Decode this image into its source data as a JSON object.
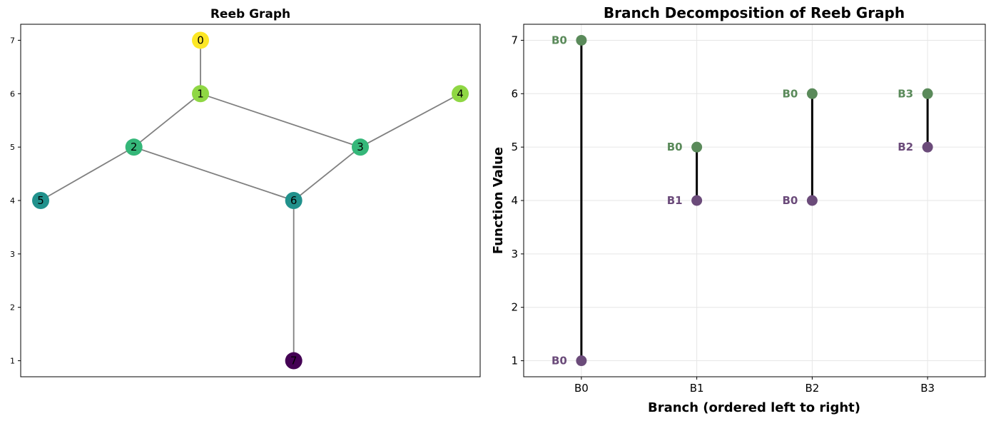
{
  "chart_data": [
    {
      "type": "graph",
      "title": "Reeb Graph",
      "ylim": [
        0.7,
        7.3
      ],
      "xlim": [
        -0.2,
        6.7
      ],
      "yticks": [
        1,
        2,
        3,
        4,
        5,
        6,
        7
      ],
      "nodes": [
        {
          "id": "0",
          "x": 2.5,
          "y": 7,
          "color": "#fde725"
        },
        {
          "id": "1",
          "x": 2.5,
          "y": 6,
          "color": "#8fd744"
        },
        {
          "id": "2",
          "x": 1.5,
          "y": 5,
          "color": "#35b779"
        },
        {
          "id": "3",
          "x": 4.9,
          "y": 5,
          "color": "#35b779"
        },
        {
          "id": "4",
          "x": 6.4,
          "y": 6,
          "color": "#8fd744"
        },
        {
          "id": "5",
          "x": 0.1,
          "y": 4,
          "color": "#21918c"
        },
        {
          "id": "6",
          "x": 3.9,
          "y": 4,
          "color": "#21918c"
        },
        {
          "id": "7",
          "x": 3.9,
          "y": 1,
          "color": "#440154"
        }
      ],
      "edges": [
        [
          "0",
          "1"
        ],
        [
          "1",
          "2"
        ],
        [
          "1",
          "3"
        ],
        [
          "3",
          "4"
        ],
        [
          "2",
          "5"
        ],
        [
          "2",
          "6"
        ],
        [
          "3",
          "6"
        ],
        [
          "6",
          "7"
        ]
      ],
      "edge_color": "#808080"
    },
    {
      "type": "scatter",
      "title": "Branch Decomposition of Reeb Graph",
      "xlabel": "Branch (ordered left to right)",
      "ylabel": "Function Value",
      "categories": [
        "B0",
        "B1",
        "B2",
        "B3"
      ],
      "ylim": [
        0.7,
        7.3
      ],
      "yticks": [
        1,
        2,
        3,
        4,
        5,
        6,
        7
      ],
      "grid": true,
      "top_color": "#5a8a5a",
      "bottom_color": "#6b4b7a",
      "branches": [
        {
          "x": "B0",
          "top": 7,
          "bottom": 1,
          "top_label": "B0",
          "bottom_label": "B0"
        },
        {
          "x": "B1",
          "top": 5,
          "bottom": 4,
          "top_label": "B0",
          "bottom_label": "B1"
        },
        {
          "x": "B2",
          "top": 6,
          "bottom": 4,
          "top_label": "B0",
          "bottom_label": "B0"
        },
        {
          "x": "B3",
          "top": 6,
          "bottom": 5,
          "top_label": "B3",
          "bottom_label": "B2"
        }
      ]
    }
  ]
}
